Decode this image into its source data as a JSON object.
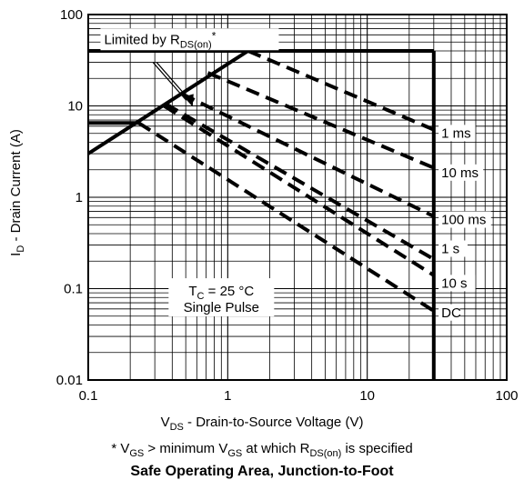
{
  "chart_data": {
    "type": "line",
    "title": "Safe Operating Area, Junction-to-Foot",
    "xlabel": {
      "main": "V",
      "sub": "DS",
      "rest": " - Drain-to-Source Voltage (V)"
    },
    "ylabel": {
      "main": "I",
      "sub": "D",
      "rest": " - Drain Current (A)"
    },
    "x_scale": "log",
    "y_scale": "log",
    "xlim": [
      0.1,
      100
    ],
    "ylim": [
      0.01,
      100
    ],
    "x_ticks": [
      {
        "value": 0.1,
        "label": "0.1"
      },
      {
        "value": 1,
        "label": "1"
      },
      {
        "value": 10,
        "label": "10"
      },
      {
        "value": 100,
        "label": "100"
      }
    ],
    "y_ticks": [
      {
        "value": 0.01,
        "label": "0.01"
      },
      {
        "value": 0.1,
        "label": "0.1"
      },
      {
        "value": 1,
        "label": "1"
      },
      {
        "value": 10,
        "label": "10"
      },
      {
        "value": 100,
        "label": "100"
      }
    ],
    "grid": true,
    "limits": {
      "rds_on": {
        "points": [
          [
            0.1,
            3.0
          ],
          [
            1.4,
            40
          ]
        ],
        "style": "solid"
      },
      "max_current": {
        "points": [
          [
            0.1,
            40
          ],
          [
            30,
            40
          ]
        ],
        "style": "solid"
      },
      "max_voltage": {
        "points": [
          [
            30,
            40
          ],
          [
            30,
            0.01
          ]
        ],
        "style": "solid"
      },
      "pulse_current": {
        "points": [
          [
            0.1,
            6.5
          ],
          [
            0.23,
            6.5
          ]
        ],
        "style": "solid"
      }
    },
    "series": [
      {
        "name": "1 ms",
        "style": "dashed",
        "points": [
          [
            1.4,
            40
          ],
          [
            30,
            5.5
          ]
        ]
      },
      {
        "name": "10 ms",
        "style": "dashed",
        "points": [
          [
            0.72,
            23
          ],
          [
            30,
            2.1
          ]
        ]
      },
      {
        "name": "100 ms",
        "style": "dashed",
        "points": [
          [
            0.47,
            13.5
          ],
          [
            30,
            0.62
          ]
        ]
      },
      {
        "name": "1 s",
        "style": "dashed",
        "points": [
          [
            0.36,
            10.5
          ],
          [
            30,
            0.21
          ]
        ]
      },
      {
        "name": "10 s",
        "style": "dashed",
        "points": [
          [
            0.35,
            10
          ],
          [
            30,
            0.14
          ]
        ]
      },
      {
        "name": "DC",
        "style": "dashed",
        "points": [
          [
            0.23,
            6.5
          ],
          [
            30,
            0.057
          ]
        ]
      }
    ],
    "series_labels": [
      {
        "series": "1 ms",
        "text": "1 ms",
        "at": [
          34,
          4.6
        ]
      },
      {
        "series": "10 ms",
        "text": "10 ms",
        "at": [
          34,
          1.7
        ]
      },
      {
        "series": "100 ms",
        "text": "100 ms",
        "at": [
          34,
          0.52
        ]
      },
      {
        "series": "1 s",
        "text": "1 s",
        "at": [
          34,
          0.25
        ]
      },
      {
        "series": "10 s",
        "text": "10 s",
        "at": [
          34,
          0.105
        ]
      },
      {
        "series": "DC",
        "text": "DC",
        "at": [
          34,
          0.05
        ]
      }
    ],
    "annotations": {
      "limited_by": {
        "text": "Limited by R",
        "sub": "DS(on)",
        "sup": "*",
        "at": [
          0.13,
          50
        ]
      },
      "condition": {
        "line1_main": "T",
        "line1_sub": "C",
        "line1_rest": " = 25 °C",
        "line2": "Single Pulse",
        "at": [
          0.9,
          0.075
        ]
      }
    },
    "footnote": {
      "prefix": "* V",
      "sub1": "GS",
      "mid": " > minimum V",
      "sub2": "GS",
      "mid2": " at which R",
      "sub3": "DS(on)",
      "suffix": " is specified"
    }
  }
}
